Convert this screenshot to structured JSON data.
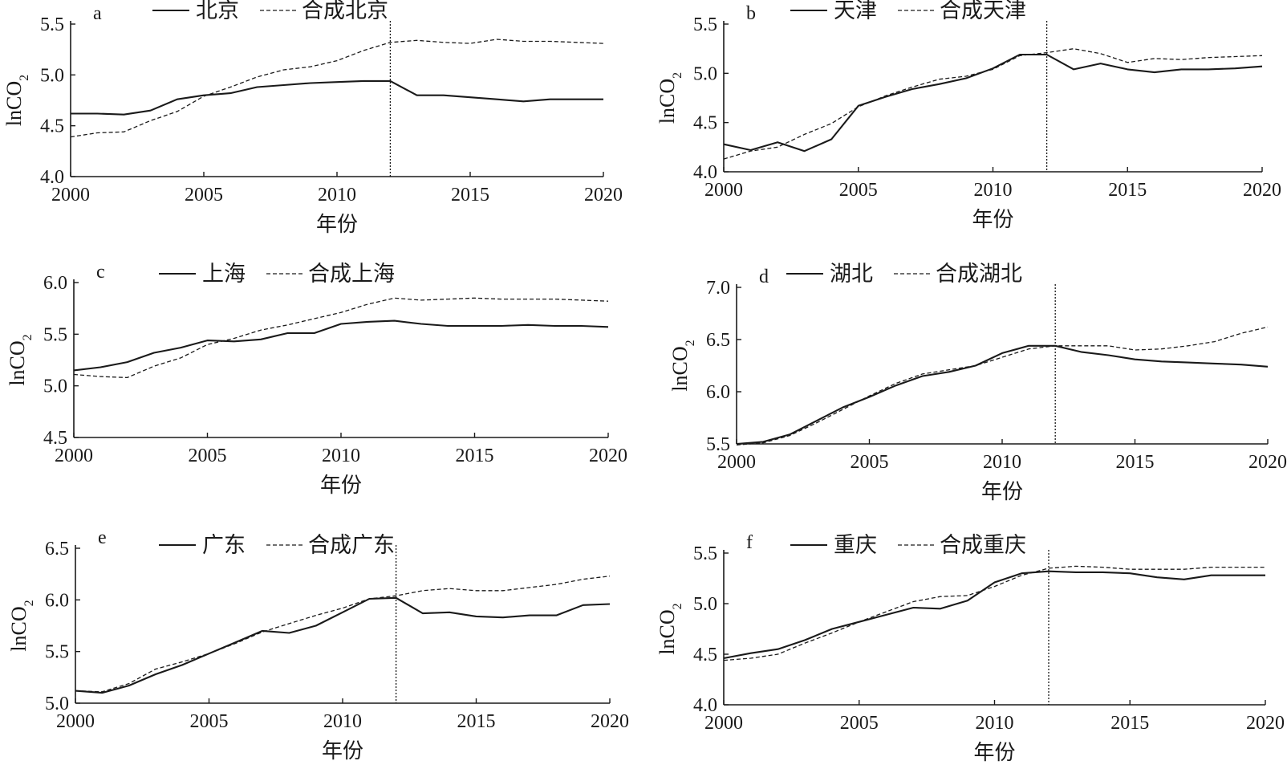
{
  "chart_data": [
    {
      "type": "line",
      "panel": "a",
      "xlabel": "年份",
      "ylabel": "lnCO",
      "ylabel_sub": "2",
      "x": [
        2000,
        2001,
        2002,
        2003,
        2004,
        2005,
        2006,
        2007,
        2008,
        2009,
        2010,
        2011,
        2012,
        2013,
        2014,
        2015,
        2016,
        2017,
        2018,
        2019,
        2020
      ],
      "xticks": [
        2000,
        2005,
        2010,
        2015,
        2020
      ],
      "xlim": [
        2000,
        2020
      ],
      "ylim": [
        4.0,
        5.5
      ],
      "yticks": [
        "4.0",
        "4.5",
        "5.0",
        "5.5"
      ],
      "treatment_year": 2012,
      "series": [
        {
          "name": "北京",
          "style": "solid",
          "values": [
            4.62,
            4.62,
            4.61,
            4.65,
            4.76,
            4.8,
            4.82,
            4.88,
            4.9,
            4.92,
            4.93,
            4.94,
            4.94,
            4.8,
            4.8,
            4.78,
            4.76,
            4.74,
            4.76,
            4.76,
            4.76
          ]
        },
        {
          "name": "合成北京",
          "style": "dashed",
          "values": [
            4.39,
            4.43,
            4.44,
            4.55,
            4.64,
            4.79,
            4.88,
            4.98,
            5.05,
            5.08,
            5.14,
            5.24,
            5.32,
            5.34,
            5.32,
            5.31,
            5.35,
            5.33,
            5.33,
            5.32,
            5.31
          ]
        }
      ]
    },
    {
      "type": "line",
      "panel": "b",
      "xlabel": "年份",
      "ylabel": "lnCO",
      "ylabel_sub": "2",
      "x": [
        2000,
        2001,
        2002,
        2003,
        2004,
        2005,
        2006,
        2007,
        2008,
        2009,
        2010,
        2011,
        2012,
        2013,
        2014,
        2015,
        2016,
        2017,
        2018,
        2019,
        2020
      ],
      "xticks": [
        2000,
        2005,
        2010,
        2015,
        2020
      ],
      "xlim": [
        2000,
        2020
      ],
      "ylim": [
        4.0,
        5.5
      ],
      "yticks": [
        "4.0",
        "4.5",
        "5.0",
        "5.5"
      ],
      "treatment_year": 2012,
      "series": [
        {
          "name": "天津",
          "style": "solid",
          "values": [
            4.28,
            4.22,
            4.3,
            4.21,
            4.33,
            4.67,
            4.76,
            4.84,
            4.89,
            4.95,
            5.05,
            5.19,
            5.19,
            5.04,
            5.1,
            5.04,
            5.01,
            5.04,
            5.04,
            5.05,
            5.07
          ]
        },
        {
          "name": "合成天津",
          "style": "dashed",
          "values": [
            4.13,
            4.21,
            4.25,
            4.38,
            4.49,
            4.66,
            4.77,
            4.86,
            4.94,
            4.97,
            5.04,
            5.18,
            5.21,
            5.25,
            5.2,
            5.11,
            5.15,
            5.14,
            5.16,
            5.17,
            5.18
          ]
        }
      ]
    },
    {
      "type": "line",
      "panel": "c",
      "xlabel": "年份",
      "ylabel": "lnCO",
      "ylabel_sub": "2",
      "x": [
        2000,
        2001,
        2002,
        2003,
        2004,
        2005,
        2006,
        2007,
        2008,
        2009,
        2010,
        2011,
        2012,
        2013,
        2014,
        2015,
        2016,
        2017,
        2018,
        2019,
        2020
      ],
      "xticks": [
        2000,
        2005,
        2010,
        2015,
        2020
      ],
      "xlim": [
        2000,
        2020
      ],
      "ylim": [
        4.5,
        6.0
      ],
      "yticks": [
        "4.5",
        "5.0",
        "5.5",
        "6.0"
      ],
      "treatment_year": null,
      "series": [
        {
          "name": "上海",
          "style": "solid",
          "values": [
            5.15,
            5.18,
            5.23,
            5.32,
            5.37,
            5.44,
            5.43,
            5.45,
            5.51,
            5.51,
            5.6,
            5.62,
            5.63,
            5.6,
            5.58,
            5.58,
            5.58,
            5.59,
            5.58,
            5.58,
            5.57
          ]
        },
        {
          "name": "合成上海",
          "style": "dashed",
          "values": [
            5.11,
            5.09,
            5.08,
            5.19,
            5.27,
            5.4,
            5.46,
            5.54,
            5.59,
            5.65,
            5.71,
            5.79,
            5.85,
            5.83,
            5.84,
            5.85,
            5.84,
            5.84,
            5.84,
            5.83,
            5.82
          ]
        }
      ]
    },
    {
      "type": "line",
      "panel": "d",
      "xlabel": "年份",
      "ylabel": "lnCO",
      "ylabel_sub": "2",
      "x": [
        2000,
        2001,
        2002,
        2003,
        2004,
        2005,
        2006,
        2007,
        2008,
        2009,
        2010,
        2011,
        2012,
        2013,
        2014,
        2015,
        2016,
        2017,
        2018,
        2019,
        2020
      ],
      "xticks": [
        2000,
        2005,
        2010,
        2015,
        2020
      ],
      "xlim": [
        2000,
        2020
      ],
      "ylim": [
        5.5,
        7.0
      ],
      "yticks": [
        "5.5",
        "6.0",
        "6.5",
        "7.0"
      ],
      "treatment_year": 2012,
      "series": [
        {
          "name": "湖北",
          "style": "solid",
          "values": [
            5.5,
            5.52,
            5.59,
            5.72,
            5.85,
            5.95,
            6.06,
            6.15,
            6.19,
            6.25,
            6.37,
            6.44,
            6.44,
            6.38,
            6.35,
            6.31,
            6.29,
            6.28,
            6.27,
            6.26,
            6.24
          ]
        },
        {
          "name": "合成湖北",
          "style": "dashed",
          "values": [
            5.49,
            5.51,
            5.58,
            5.7,
            5.83,
            5.96,
            6.08,
            6.17,
            6.21,
            6.25,
            6.33,
            6.41,
            6.44,
            6.44,
            6.44,
            6.4,
            6.41,
            6.44,
            6.48,
            6.56,
            6.62
          ]
        }
      ]
    },
    {
      "type": "line",
      "panel": "e",
      "xlabel": "年份",
      "ylabel": "lnCO",
      "ylabel_sub": "2",
      "x": [
        2000,
        2001,
        2002,
        2003,
        2004,
        2005,
        2006,
        2007,
        2008,
        2009,
        2010,
        2011,
        2012,
        2013,
        2014,
        2015,
        2016,
        2017,
        2018,
        2019,
        2020
      ],
      "xticks": [
        2000,
        2005,
        2010,
        2015,
        2020
      ],
      "xlim": [
        2000,
        2020
      ],
      "ylim": [
        5.0,
        6.5
      ],
      "yticks": [
        "5.0",
        "5.5",
        "6.0",
        "6.5"
      ],
      "treatment_year": 2012,
      "series": [
        {
          "name": "广东",
          "style": "solid",
          "values": [
            5.12,
            5.1,
            5.17,
            5.28,
            5.37,
            5.48,
            5.59,
            5.7,
            5.68,
            5.75,
            5.88,
            6.01,
            6.02,
            5.87,
            5.88,
            5.84,
            5.83,
            5.85,
            5.85,
            5.95,
            5.96
          ]
        },
        {
          "name": "合成广东",
          "style": "dashed",
          "values": [
            5.12,
            5.11,
            5.19,
            5.33,
            5.4,
            5.48,
            5.58,
            5.69,
            5.77,
            5.85,
            5.92,
            6.01,
            6.04,
            6.09,
            6.11,
            6.09,
            6.09,
            6.12,
            6.15,
            6.2,
            6.23
          ]
        }
      ]
    },
    {
      "type": "line",
      "panel": "f",
      "xlabel": "年份",
      "ylabel": "lnCO",
      "ylabel_sub": "2",
      "x": [
        2000,
        2001,
        2002,
        2003,
        2004,
        2005,
        2006,
        2007,
        2008,
        2009,
        2010,
        2011,
        2012,
        2013,
        2014,
        2015,
        2016,
        2017,
        2018,
        2019,
        2020
      ],
      "xticks": [
        2000,
        2005,
        2010,
        2015,
        2020
      ],
      "xlim": [
        2000,
        2020
      ],
      "ylim": [
        4.0,
        5.5
      ],
      "yticks": [
        "4.0",
        "4.5",
        "5.0",
        "5.5"
      ],
      "treatment_year": 2012,
      "series": [
        {
          "name": "重庆",
          "style": "solid",
          "values": [
            4.46,
            4.51,
            4.55,
            4.64,
            4.75,
            4.82,
            4.89,
            4.96,
            4.95,
            5.03,
            5.21,
            5.3,
            5.32,
            5.31,
            5.31,
            5.3,
            5.26,
            5.24,
            5.28,
            5.28,
            5.28
          ]
        },
        {
          "name": "合成重庆",
          "style": "dashed",
          "values": [
            4.44,
            4.46,
            4.5,
            4.61,
            4.71,
            4.82,
            4.92,
            5.02,
            5.07,
            5.08,
            5.17,
            5.28,
            5.35,
            5.37,
            5.36,
            5.34,
            5.34,
            5.34,
            5.36,
            5.36,
            5.36
          ]
        }
      ]
    }
  ]
}
